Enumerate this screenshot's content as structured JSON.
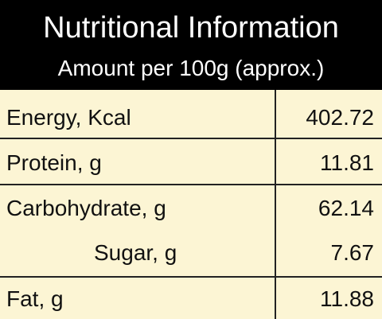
{
  "header": {
    "title": "Nutritional Information",
    "subtitle": "Amount per 100g (approx.)"
  },
  "table": {
    "rows": [
      [
        "Energy, Kcal",
        "402.72"
      ],
      [
        "Protein, g",
        "11.81"
      ],
      [
        "Carbohydrate, g",
        "62.14"
      ],
      [
        "Sugar, g",
        "7.67"
      ],
      [
        "Fat, g",
        "11.88"
      ]
    ]
  }
}
